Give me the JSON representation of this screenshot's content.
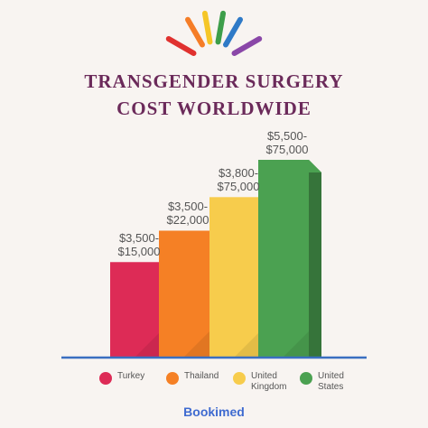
{
  "title_line1": "TRANSGENDER SURGERY",
  "title_line2": "COST WORLDWIDE",
  "brand": "Bookimed",
  "chart_data": {
    "type": "bar",
    "categories": [
      "Turkey",
      "Thailand",
      "United Kingdom",
      "United States"
    ],
    "value_labels": [
      [
        "$3,500-",
        "$15,000"
      ],
      [
        "$3,500-",
        "$22,000"
      ],
      [
        "$3,800-",
        "$75,000"
      ],
      [
        "$5,500-",
        "$75,000"
      ]
    ],
    "ranges": [
      [
        3500,
        15000
      ],
      [
        3500,
        22000
      ],
      [
        3800,
        75000
      ],
      [
        5500,
        75000
      ]
    ],
    "bar_heights_relative": [
      0.48,
      0.64,
      0.81,
      1.0
    ],
    "colors": [
      "#dd2b56",
      "#f58025",
      "#f7cc4c",
      "#4ba151"
    ],
    "axis_color": "#3a6fc1"
  },
  "legend": [
    {
      "line1": "Turkey",
      "line2": "",
      "color": "#dd2b56"
    },
    {
      "line1": "Thailand",
      "line2": "",
      "color": "#f58025"
    },
    {
      "line1": "United",
      "line2": "Kingdom",
      "color": "#f7cc4c"
    },
    {
      "line1": "United",
      "line2": "States",
      "color": "#4ba151"
    }
  ],
  "rays_colors": [
    "#e0312f",
    "#f57d27",
    "#f5c627",
    "#3d9e4a",
    "#2f7ac7",
    "#8a47a8"
  ]
}
